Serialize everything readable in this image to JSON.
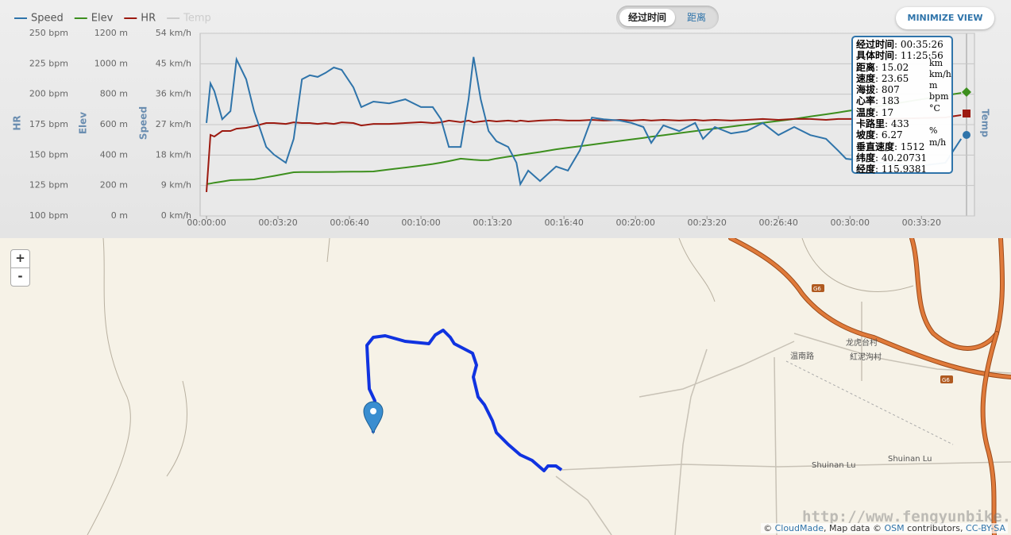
{
  "chart_data": {
    "type": "line",
    "x": [
      0,
      11,
      22,
      44,
      67,
      84,
      111,
      133,
      167,
      189,
      222,
      244,
      267,
      289,
      311,
      333,
      356,
      378,
      411,
      433,
      467,
      511,
      556,
      600,
      633,
      656,
      678,
      711,
      733,
      747,
      767,
      789,
      811,
      844,
      867,
      878,
      900,
      933,
      978,
      1011,
      1044,
      1078,
      1111,
      1156,
      1189,
      1222,
      1244,
      1278,
      1322,
      1367,
      1389,
      1422,
      1467,
      1511,
      1556,
      1600,
      1644,
      1689,
      1733,
      1767,
      1789,
      1889,
      1978,
      2067,
      2111
    ],
    "xlim": [
      0,
      2126
    ],
    "xticks": [
      {
        "value": 0,
        "label": "00:00:00"
      },
      {
        "value": 200,
        "label": "00:03:20"
      },
      {
        "value": 400,
        "label": "00:06:40"
      },
      {
        "value": 600,
        "label": "00:10:00"
      },
      {
        "value": 800,
        "label": "00:13:20"
      },
      {
        "value": 1000,
        "label": "00:16:40"
      },
      {
        "value": 1200,
        "label": "00:20:00"
      },
      {
        "value": 1400,
        "label": "00:23:20"
      },
      {
        "value": 1600,
        "label": "00:26:40"
      },
      {
        "value": 1800,
        "label": "00:30:00"
      },
      {
        "value": 2000,
        "label": "00:33:20"
      }
    ],
    "ylabel": "Speed",
    "ylim": [
      0,
      54
    ],
    "yticks": [
      {
        "value": 0,
        "label": "0 km/h"
      },
      {
        "value": 9,
        "label": "9 km/h"
      },
      {
        "value": 18,
        "label": "18 km/h"
      },
      {
        "value": 27,
        "label": "27 km/h"
      },
      {
        "value": 36,
        "label": "36 km/h"
      },
      {
        "value": 45,
        "label": "45 km/h"
      },
      {
        "value": 54,
        "label": "54 km/h"
      }
    ],
    "y2label": "Elev",
    "y2lim": [
      0,
      1200
    ],
    "y2ticks": [
      {
        "value": 0,
        "label": "0 m"
      },
      {
        "value": 200,
        "label": "200 m"
      },
      {
        "value": 400,
        "label": "400 m"
      },
      {
        "value": 600,
        "label": "600 m"
      },
      {
        "value": 800,
        "label": "800 m"
      },
      {
        "value": 1000,
        "label": "1000 m"
      },
      {
        "value": 1200,
        "label": "1200 m"
      }
    ],
    "y3label": "HR",
    "y3lim": [
      100,
      250
    ],
    "y3ticks": [
      {
        "value": 100,
        "label": "100 bpm"
      },
      {
        "value": 125,
        "label": "125 bpm"
      },
      {
        "value": 150,
        "label": "150 bpm"
      },
      {
        "value": 175,
        "label": "175 bpm"
      },
      {
        "value": 200,
        "label": "200 bpm"
      },
      {
        "value": 225,
        "label": "225 bpm"
      },
      {
        "value": 250,
        "label": "250 bpm"
      }
    ],
    "y4label": "Temp",
    "grid": true,
    "series": [
      {
        "name": "Speed",
        "color": "#2f74aa",
        "values": [
          27.5,
          39.2,
          36.9,
          28.6,
          31.0,
          46.3,
          40.4,
          31.0,
          20.4,
          18.1,
          15.7,
          22.8,
          40.4,
          41.6,
          41.1,
          42.3,
          43.9,
          43.2,
          38.0,
          32.2,
          33.8,
          33.3,
          34.5,
          32.2,
          32.2,
          28.6,
          20.4,
          20.4,
          34.5,
          47.0,
          34.5,
          25.1,
          22.1,
          20.4,
          15.7,
          9.4,
          13.4,
          10.3,
          14.6,
          13.4,
          19.3,
          29.1,
          28.6,
          28.2,
          27.5,
          26.3,
          21.6,
          26.8,
          25.1,
          27.5,
          22.8,
          26.3,
          24.4,
          25.1,
          27.5,
          23.9,
          26.3,
          23.9,
          22.8,
          19.3,
          16.9,
          15.7,
          14.6,
          15.7,
          22.8
        ]
      },
      {
        "name": "Elev",
        "color": "#3d8f1e",
        "axis": "y2",
        "values": [
          209,
          213,
          218,
          226,
          235,
          236,
          238,
          240,
          254,
          263,
          277,
          287,
          288,
          288,
          288,
          289,
          289,
          290,
          291,
          291,
          292,
          305,
          318,
          331,
          341,
          350,
          360,
          376,
          372,
          369,
          366,
          367,
          377,
          389,
          397,
          401,
          409,
          420,
          438,
          448,
          458,
          468,
          479,
          493,
          503,
          513,
          520,
          530,
          544,
          558,
          564,
          574,
          587,
          600,
          612,
          624,
          637,
          653,
          668,
          680,
          688,
          724,
          758,
          792,
          808
        ]
      },
      {
        "name": "HR",
        "color": "#9c1a10",
        "axis": "y3",
        "values": [
          119.6,
          166.5,
          165.2,
          169.8,
          169.8,
          171.7,
          172.4,
          173.7,
          176.3,
          176.3,
          175.6,
          176.9,
          176.3,
          176.3,
          175.6,
          176.3,
          175.6,
          176.9,
          176.3,
          174.3,
          175.6,
          175.6,
          176.3,
          177.0,
          176.3,
          176.9,
          178.3,
          177.0,
          178.3,
          176.9,
          177.6,
          178.3,
          177.6,
          178.3,
          177.6,
          178.3,
          177.6,
          178.3,
          178.9,
          178.3,
          178.3,
          178.9,
          178.3,
          178.9,
          178.3,
          178.9,
          178.3,
          178.9,
          178.3,
          178.9,
          178.3,
          178.9,
          178.3,
          178.9,
          179.6,
          178.9,
          179.6,
          179.6,
          178.9,
          179.6,
          179.6,
          179.6,
          180.2,
          180.9,
          182.8
        ]
      },
      {
        "name": "Temp",
        "color": "#cccccc",
        "visible": false
      }
    ],
    "tooltip": [
      {
        "label": "经过时间",
        "value": ": 00:35:26",
        "unit": ""
      },
      {
        "label": "具体时间",
        "value": ": 11:25:56",
        "unit": ""
      },
      {
        "label": "距离",
        "value": ": 15.02",
        "unit": "km"
      },
      {
        "label": "速度",
        "value": ": 23.65",
        "unit": "km/h"
      },
      {
        "label": "海拔",
        "value": ": 807",
        "unit": "m"
      },
      {
        "label": "心率",
        "value": ": 183",
        "unit": "bpm"
      },
      {
        "label": "温度",
        "value": ": 17",
        "unit": "°C"
      },
      {
        "label": "卡路里",
        "value": ": 433",
        "unit": ""
      },
      {
        "label": "坡度",
        "value": ": 6.27",
        "unit": "%"
      },
      {
        "label": "垂直速度",
        "value": ": 1512",
        "unit": "m/h"
      },
      {
        "label": "纬度",
        "value": ": 40.20731",
        "unit": ""
      },
      {
        "label": "经度",
        "value": ": 115.9381",
        "unit": ""
      }
    ]
  },
  "toggle": {
    "options": [
      "经过时间",
      "距离"
    ]
  },
  "minimize": "MINIMIZE VIEW",
  "map": {
    "zoom_in": "+",
    "zoom_out": "-",
    "labels": [
      "龙虎台村",
      "温南路",
      "紅泥沟村",
      "Shuinan Lu",
      "Shuinan Lu",
      "G6",
      "G6"
    ],
    "attribution": [
      "© ",
      "CloudMade",
      ", Map data © ",
      "OSM",
      " contributors, ",
      "CC-BY-SA"
    ],
    "watermark": "http://www.fengyunbike.com"
  }
}
